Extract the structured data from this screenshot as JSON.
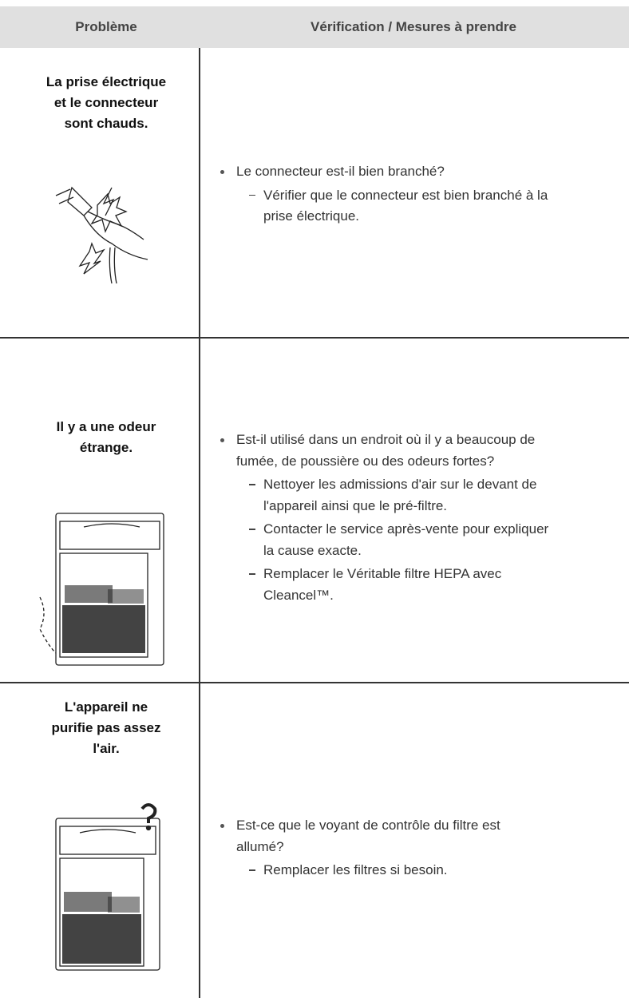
{
  "header": {
    "columns": [
      "Problème",
      "Vérification / Mesures à prendre"
    ]
  },
  "rows": [
    {
      "problem": [
        "La prise électrique",
        "et le connecteur",
        "sont chauds."
      ],
      "checks": [
        {
          "question": [
            "Le connecteur est-il bien branché?"
          ],
          "actions": [
            [
              "Vérifier que le connecteur est bien branché à la",
              "prise électrique."
            ]
          ]
        }
      ]
    },
    {
      "problem": [
        "Il y a une odeur",
        "étrange."
      ],
      "checks": [
        {
          "question": [
            "Est-il utilisé dans un endroit où il y a beaucoup de",
            "fumée, de poussière ou des odeurs fortes?"
          ],
          "actions": [
            [
              "Nettoyer les admissions d'air sur le devant de",
              "l'appareil ainsi que le pré-filtre."
            ],
            [
              "Contacter le service après-vente pour expliquer",
              "la cause exacte."
            ],
            [
              "Remplacer le Véritable filtre HEPA avec",
              "Cleancel™."
            ]
          ]
        }
      ]
    },
    {
      "problem": [
        "L'appareil ne",
        "purifie pas assez",
        "l'air."
      ],
      "checks": [
        {
          "question": [
            "Est-ce que le voyant de contrôle du filtre est",
            "allumé?"
          ],
          "actions": [
            [
              "Remplacer les filtres si besoin."
            ]
          ]
        }
      ]
    }
  ]
}
